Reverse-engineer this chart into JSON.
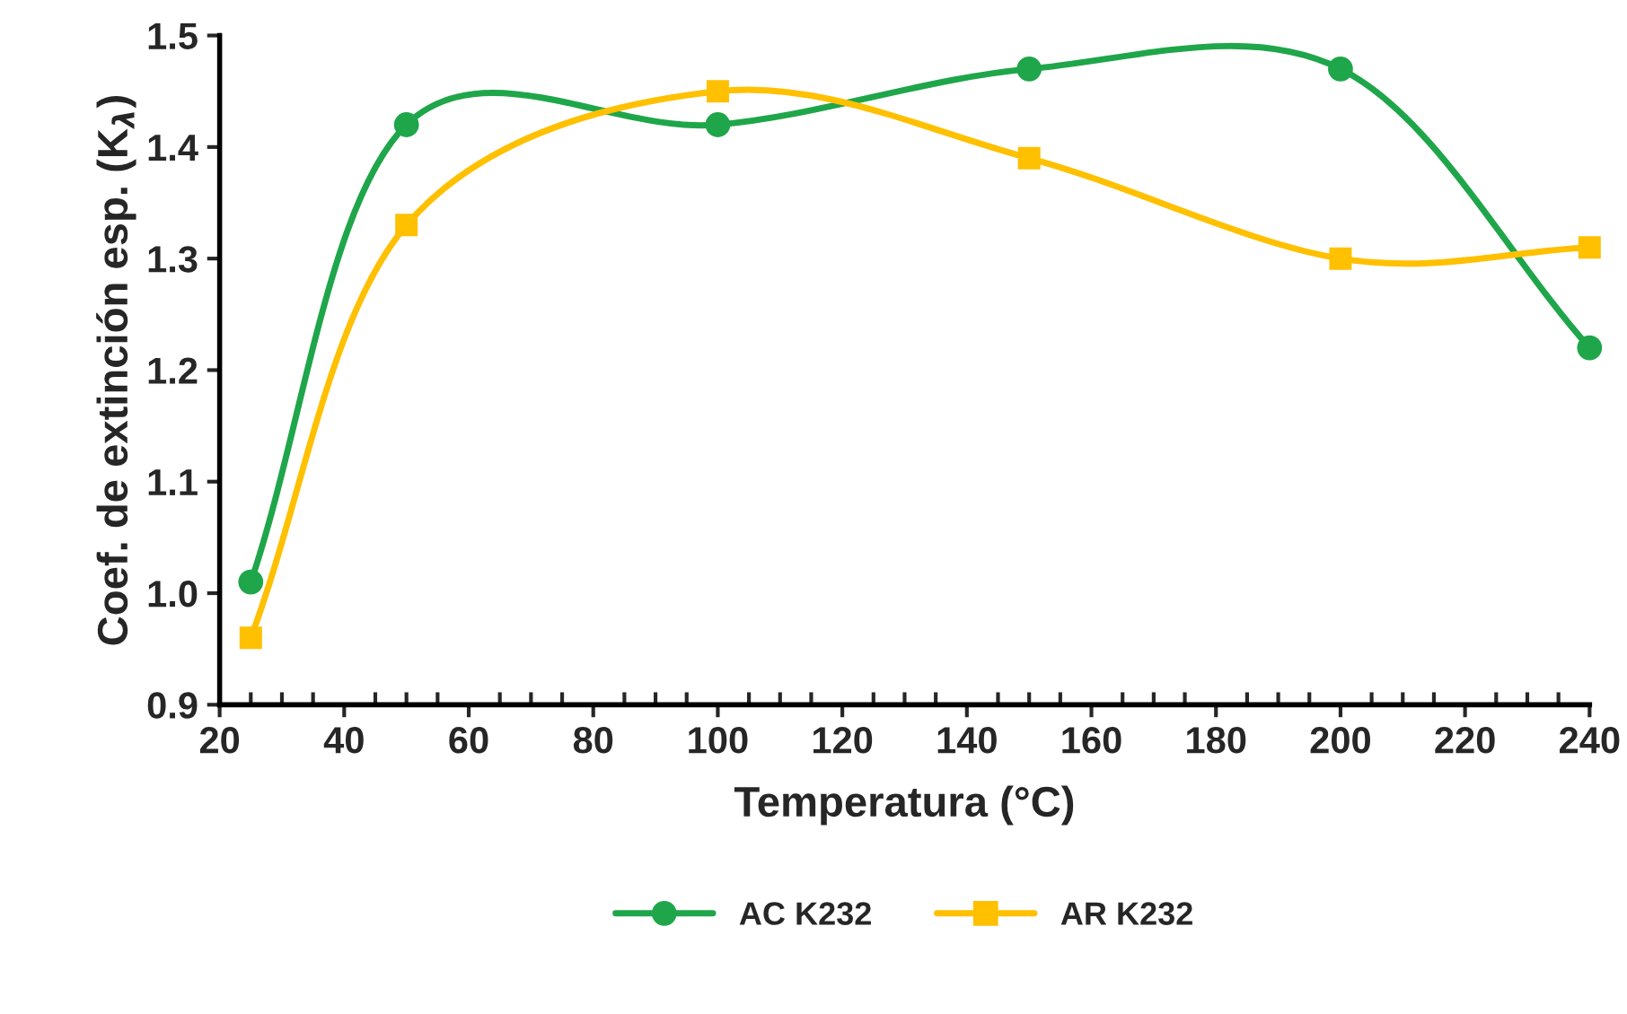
{
  "chart_data": {
    "type": "line",
    "xlabel": "Temperatura (°C)",
    "ylabel": "Coef. de extinción esp. (K$_{λ}$)",
    "x": [
      25,
      50,
      100,
      150,
      200,
      240
    ],
    "series": [
      {
        "name": "AC K232",
        "color": "#1fa64a",
        "marker": "circle",
        "values": [
          1.01,
          1.42,
          1.42,
          1.47,
          1.47,
          1.22
        ]
      },
      {
        "name": "AR K232",
        "color": "#ffc000",
        "marker": "square",
        "values": [
          0.96,
          1.33,
          1.45,
          1.39,
          1.3,
          1.31
        ]
      }
    ],
    "xlim": [
      20,
      240
    ],
    "xticks": [
      20,
      40,
      60,
      80,
      100,
      120,
      140,
      160,
      180,
      200,
      220,
      240
    ],
    "ylim": [
      0.9,
      1.5
    ],
    "yticks": [
      {
        "value": 0.9,
        "label": "0.9"
      },
      {
        "value": 1.0,
        "label": "1.0"
      },
      {
        "value": 1.1,
        "label": "1.1"
      },
      {
        "value": 1.2,
        "label": "1.2"
      },
      {
        "value": 1.3,
        "label": "1.3"
      },
      {
        "value": 1.4,
        "label": "1.4"
      },
      {
        "value": 1.5,
        "label": "1.5"
      }
    ],
    "grid": false,
    "legend": "bottom",
    "line_style": "solid"
  }
}
